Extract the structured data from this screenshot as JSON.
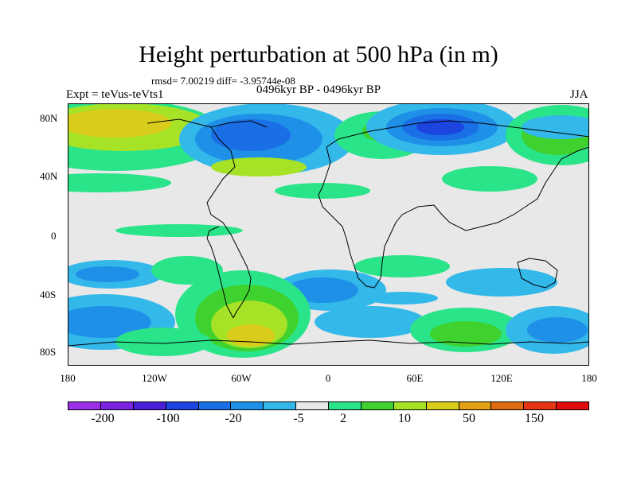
{
  "header": {
    "title": "Height perturbation at 500 hPa (in m)",
    "stats": "rmsd= 7.00219 diff= -3.95744e-08",
    "period": "0496kyr BP - 0496kyr BP",
    "experiment": "Expt = teVus-teVts1",
    "season": "JJA"
  },
  "map": {
    "y_ticks": [
      "80N",
      "40N",
      "0",
      "40S",
      "80S"
    ],
    "x_ticks": [
      "180",
      "120W",
      "60W",
      "0",
      "60E",
      "120E",
      "180"
    ]
  },
  "colorbar": {
    "colors": [
      "#9b30e8",
      "#7a23e0",
      "#4a1fd6",
      "#1c45e0",
      "#1a6ee6",
      "#1e90e8",
      "#33b8ea",
      "#e8e8e8",
      "#2ae48a",
      "#3fd22e",
      "#a6e226",
      "#d9cc1a",
      "#e3a012",
      "#e06a0e",
      "#e53412",
      "#e00c0c"
    ],
    "labels": [
      "-200",
      "-100",
      "-20",
      "-5",
      "2",
      "10",
      "50",
      "150"
    ]
  }
}
